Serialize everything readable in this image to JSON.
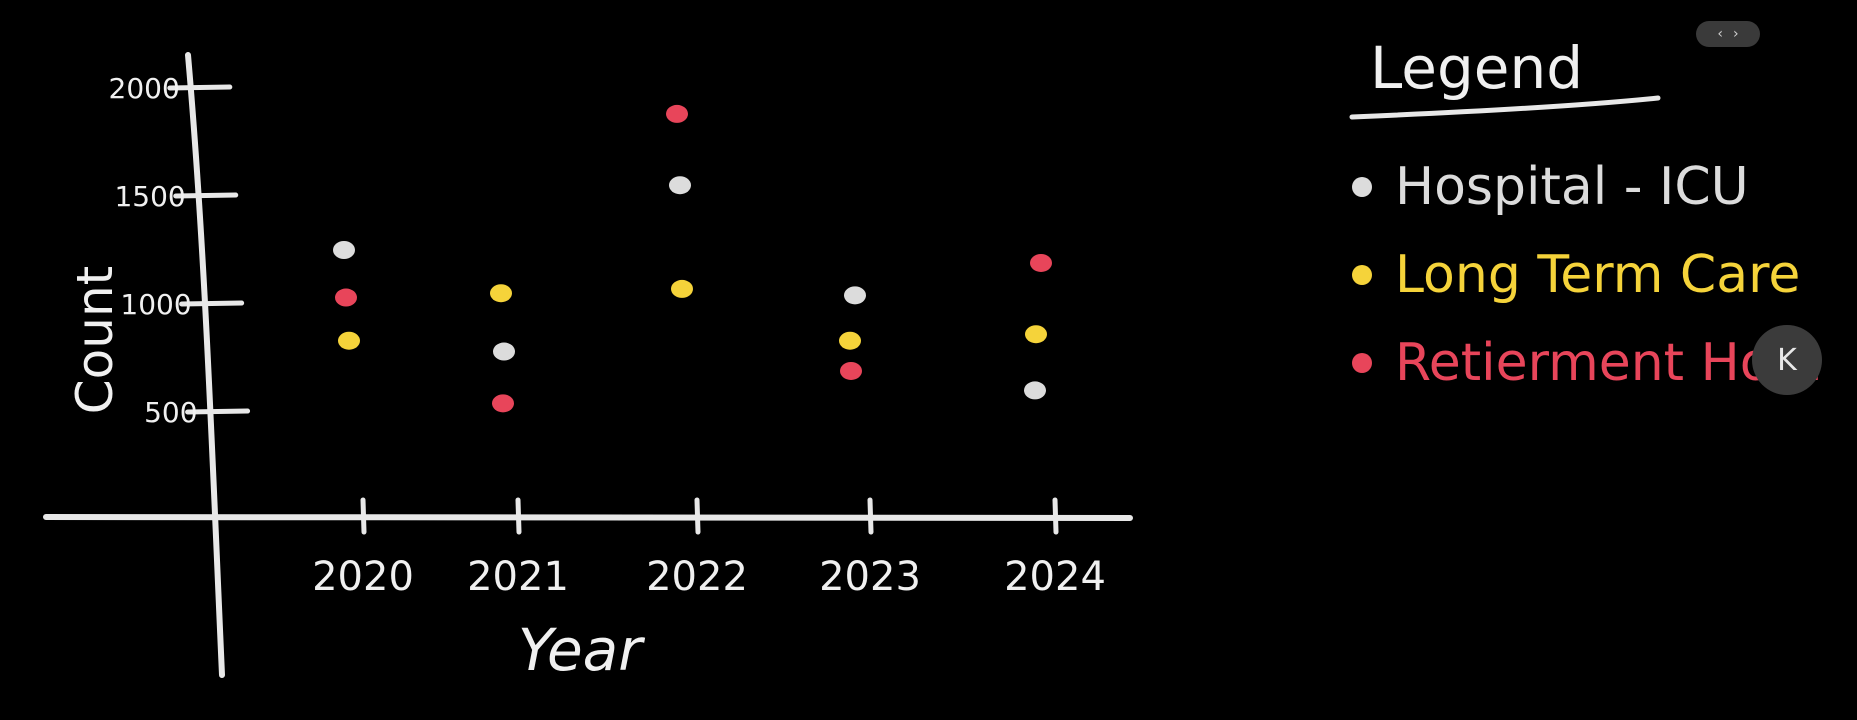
{
  "nav": {
    "prev_icon": "chevron-left-icon",
    "next_icon": "chevron-right-icon",
    "prev_glyph": "‹",
    "next_glyph": "›"
  },
  "collapse_button": {
    "icon": "collapse-left-icon",
    "glyph": "K"
  },
  "legend": {
    "title": "Legend"
  },
  "chart_data": {
    "type": "scatter",
    "categories": [
      "2020",
      "2021",
      "2022",
      "2023",
      "2024"
    ],
    "xlabel": "Year",
    "ylabel": "Count",
    "yticks": [
      "500",
      "1000",
      "1500",
      "2000"
    ],
    "ylim": [
      0,
      2000
    ],
    "grid": false,
    "legend_position": "right",
    "series": [
      {
        "name": "Hospital - ICU",
        "color": "#dcdcdc",
        "values": [
          1250,
          780,
          1550,
          1040,
          600
        ]
      },
      {
        "name": "Long Term Care",
        "color": "#f5d33a",
        "values": [
          830,
          1050,
          1070,
          830,
          860
        ]
      },
      {
        "name": "Retierment Hom",
        "color": "#e8455a",
        "values": [
          1030,
          540,
          1880,
          690,
          1190
        ]
      }
    ]
  }
}
